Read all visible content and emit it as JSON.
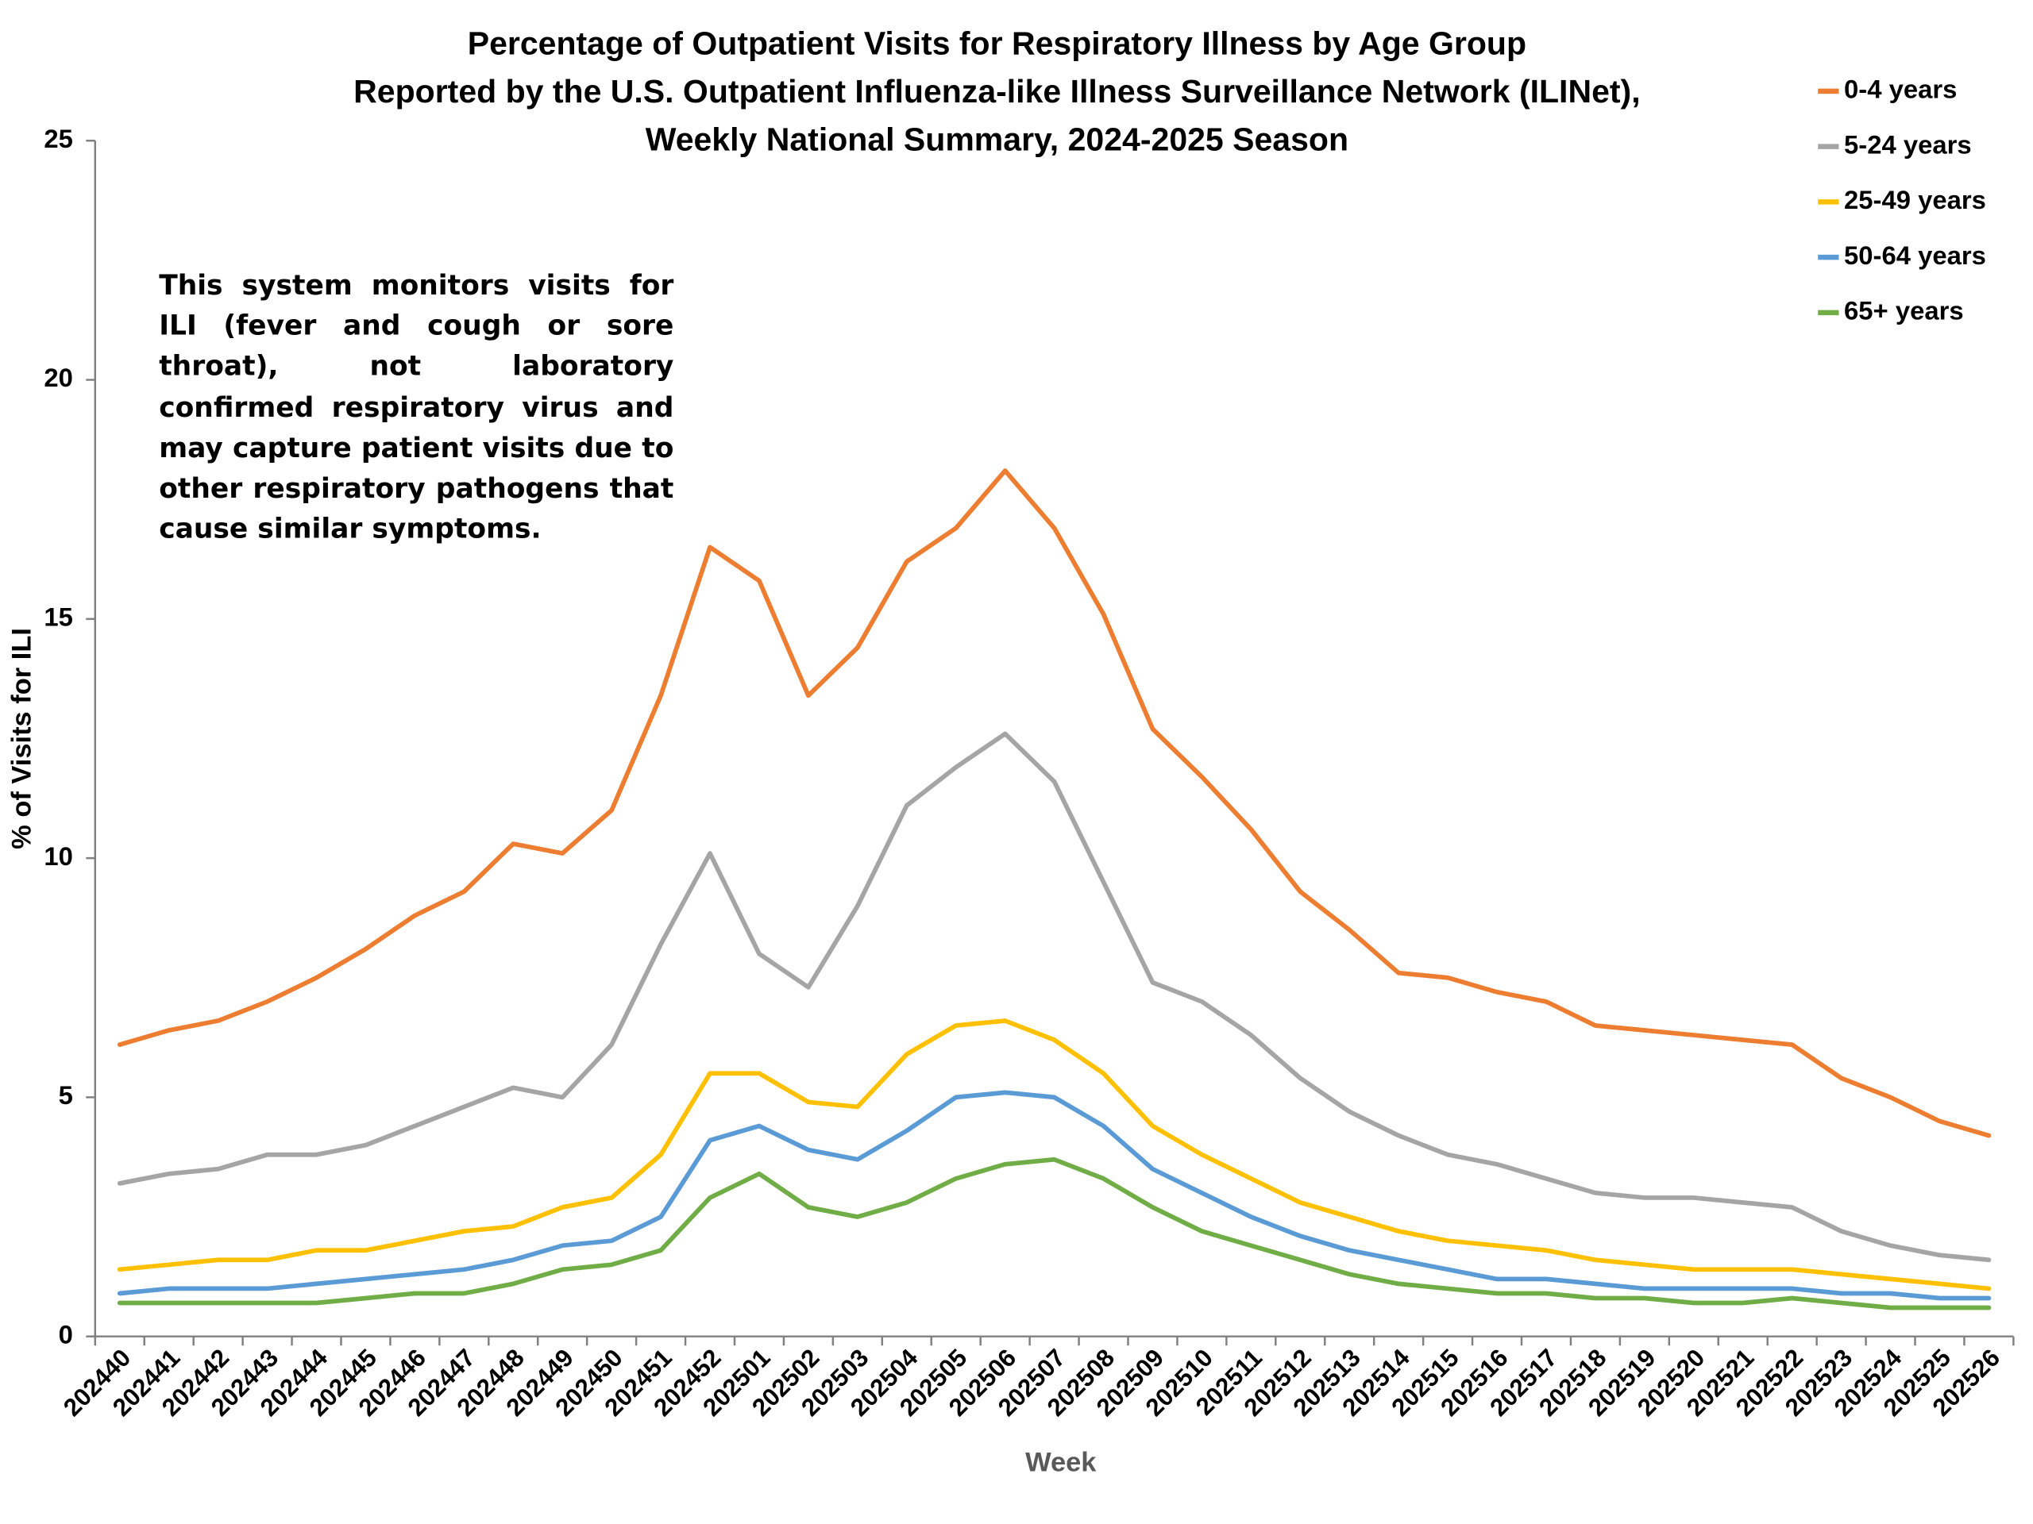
{
  "chart_data": {
    "type": "line",
    "title_lines": [
      "Percentage of Outpatient Visits for Respiratory Illness by Age Group",
      "Reported by the U.S. Outpatient Influenza-like Illness Surveillance Network (ILINet),",
      "Weekly National Summary, 2024-2025 Season"
    ],
    "annotation": "This system monitors visits for ILI (fever and cough or sore throat), not laboratory confirmed respiratory virus and may capture patient visits due to other respiratory pathogens that cause similar symptoms.",
    "x_label": "Week",
    "y_label": "% of Visits for ILI",
    "categories": [
      "202440",
      "202441",
      "202442",
      "202443",
      "202444",
      "202445",
      "202446",
      "202447",
      "202448",
      "202449",
      "202450",
      "202451",
      "202452",
      "202501",
      "202502",
      "202503",
      "202504",
      "202505",
      "202506",
      "202507",
      "202508",
      "202509",
      "202510",
      "202511",
      "202512",
      "202513",
      "202514",
      "202515",
      "202516",
      "202517",
      "202518",
      "202519",
      "202520",
      "202521",
      "202522",
      "202523",
      "202524",
      "202525",
      "202526"
    ],
    "series": [
      {
        "name": "0-4 years",
        "color": "#ED7D31",
        "values": [
          6.1,
          6.4,
          6.6,
          7.0,
          7.5,
          8.1,
          8.8,
          9.3,
          10.3,
          10.1,
          11.0,
          13.4,
          16.5,
          15.8,
          13.4,
          14.4,
          16.2,
          16.9,
          18.1,
          16.9,
          15.1,
          12.7,
          11.7,
          10.6,
          9.3,
          8.5,
          7.6,
          7.5,
          7.2,
          7.0,
          6.5,
          6.4,
          6.3,
          6.2,
          6.1,
          5.4,
          5.0,
          4.5,
          4.2
        ]
      },
      {
        "name": "5-24 years",
        "color": "#A5A5A5",
        "values": [
          3.2,
          3.4,
          3.5,
          3.8,
          3.8,
          4.0,
          4.4,
          4.8,
          5.2,
          5.0,
          6.1,
          8.2,
          10.1,
          8.0,
          7.3,
          9.0,
          11.1,
          11.9,
          12.6,
          11.6,
          9.5,
          7.4,
          7.0,
          6.3,
          5.4,
          4.7,
          4.2,
          3.8,
          3.6,
          3.3,
          3.0,
          2.9,
          2.9,
          2.8,
          2.7,
          2.2,
          1.9,
          1.7,
          1.6
        ]
      },
      {
        "name": "25-49 years",
        "color": "#FFC000",
        "values": [
          1.4,
          1.5,
          1.6,
          1.6,
          1.8,
          1.8,
          2.0,
          2.2,
          2.3,
          2.7,
          2.9,
          3.8,
          5.5,
          5.5,
          4.9,
          4.8,
          5.9,
          6.5,
          6.6,
          6.2,
          5.5,
          4.4,
          3.8,
          3.3,
          2.8,
          2.5,
          2.2,
          2.0,
          1.9,
          1.8,
          1.6,
          1.5,
          1.4,
          1.4,
          1.4,
          1.3,
          1.2,
          1.1,
          1.0
        ]
      },
      {
        "name": "50-64 years",
        "color": "#5B9BD5",
        "values": [
          0.9,
          1.0,
          1.0,
          1.0,
          1.1,
          1.2,
          1.3,
          1.4,
          1.6,
          1.9,
          2.0,
          2.5,
          4.1,
          4.4,
          3.9,
          3.7,
          4.3,
          5.0,
          5.1,
          5.0,
          4.4,
          3.5,
          3.0,
          2.5,
          2.1,
          1.8,
          1.6,
          1.4,
          1.2,
          1.2,
          1.1,
          1.0,
          1.0,
          1.0,
          1.0,
          0.9,
          0.9,
          0.8,
          0.8
        ]
      },
      {
        "name": "65+ years",
        "color": "#70AD47",
        "values": [
          0.7,
          0.7,
          0.7,
          0.7,
          0.7,
          0.8,
          0.9,
          0.9,
          1.1,
          1.4,
          1.5,
          1.8,
          2.9,
          3.4,
          2.7,
          2.5,
          2.8,
          3.3,
          3.6,
          3.7,
          3.3,
          2.7,
          2.2,
          1.9,
          1.6,
          1.3,
          1.1,
          1.0,
          0.9,
          0.9,
          0.8,
          0.8,
          0.7,
          0.7,
          0.8,
          0.7,
          0.6,
          0.6,
          0.6
        ]
      }
    ],
    "ylim": [
      0,
      25
    ],
    "yticks": [
      0,
      5,
      10,
      15,
      20,
      25
    ],
    "grid": false,
    "legend": "top-right"
  }
}
